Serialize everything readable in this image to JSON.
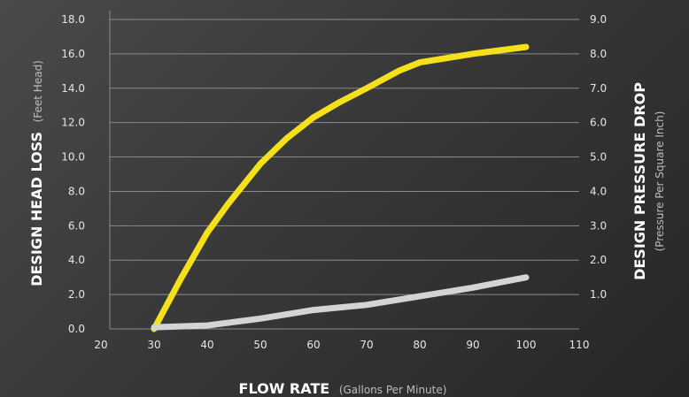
{
  "chart_data": {
    "type": "line",
    "xlabel": "FLOW RATE",
    "xlabel_sub": "(Gallons Per Minute)",
    "ylabel_left": "DESIGN HEAD LOSS",
    "ylabel_left_sub": "(Feet Head)",
    "ylabel_right": "DESIGN PRESSURE DROP",
    "ylabel_right_sub": "(Pressure Per Square Inch)",
    "xlim": [
      20,
      110
    ],
    "ylim_left": [
      0,
      18
    ],
    "ylim_right": [
      0,
      9
    ],
    "x_ticks": [
      "20",
      "30",
      "40",
      "50",
      "60",
      "70",
      "80",
      "90",
      "100",
      "110"
    ],
    "y_left_ticks": [
      "0.0",
      "2.0",
      "4.0",
      "6.0",
      "8.0",
      "10.0",
      "12.0",
      "14.0",
      "16.0",
      "18.0"
    ],
    "y_right_ticks": [
      "1.0",
      "2.0",
      "3.0",
      "4.0",
      "5.0",
      "6.0",
      "7.0",
      "8.0",
      "9.0"
    ],
    "grid": true,
    "series": [
      {
        "color": "#f5e11b",
        "x": [
          30,
          35,
          40,
          44,
          50,
          55,
          60,
          65,
          70,
          76,
          80,
          90,
          100
        ],
        "y": [
          0.0,
          2.9,
          5.6,
          7.3,
          9.6,
          11.1,
          12.3,
          13.2,
          14.0,
          15.0,
          15.5,
          16.0,
          16.4
        ]
      },
      {
        "color": "#d4d4d4",
        "x": [
          30,
          40,
          50,
          60,
          70,
          80,
          90,
          100
        ],
        "y": [
          0.1,
          0.2,
          0.6,
          1.1,
          1.4,
          1.9,
          2.4,
          3.0
        ]
      }
    ]
  }
}
